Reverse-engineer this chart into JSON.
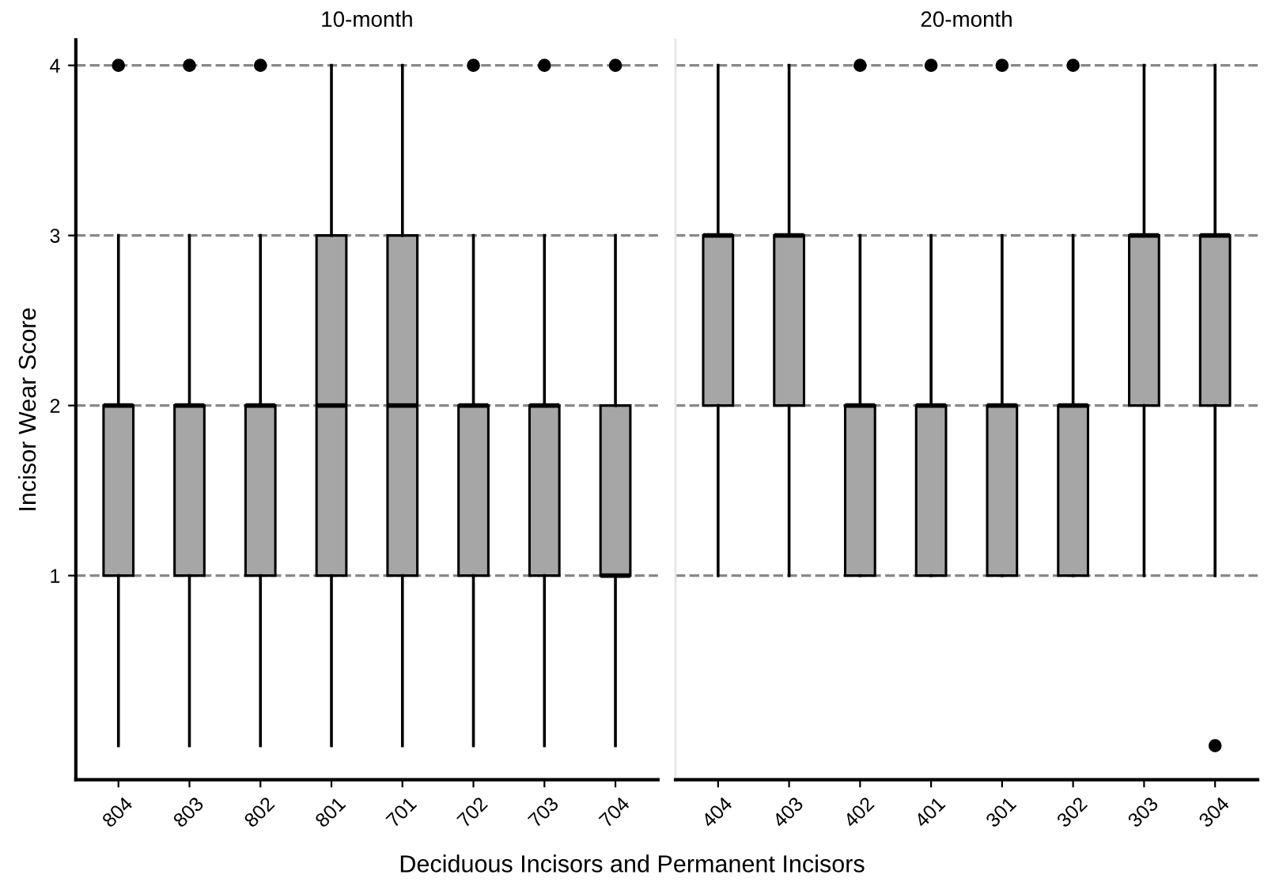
{
  "chart_data": [
    {
      "type": "box",
      "title": "10-month",
      "ylabel": "Incisor Wear Score",
      "xlabel": "Deciduous Incisors and Permanent Incisors",
      "categories": [
        "804",
        "803",
        "802",
        "801",
        "701",
        "702",
        "703",
        "704"
      ],
      "color": "#a6a6a6",
      "ylim": [
        -0.2,
        4.15
      ],
      "yticks": [
        1,
        2,
        3,
        4
      ],
      "grid": "y",
      "boxes": [
        {
          "low": 0,
          "q1": 1,
          "median": 2,
          "q3": 2,
          "high": 3,
          "outliers": [
            4
          ]
        },
        {
          "low": 0,
          "q1": 1,
          "median": 2,
          "q3": 2,
          "high": 3,
          "outliers": [
            4
          ]
        },
        {
          "low": 0,
          "q1": 1,
          "median": 2,
          "q3": 2,
          "high": 3,
          "outliers": [
            4
          ]
        },
        {
          "low": 0,
          "q1": 1,
          "median": 2,
          "q3": 3,
          "high": 4
        },
        {
          "low": 0,
          "q1": 1,
          "median": 2,
          "q3": 3,
          "high": 4
        },
        {
          "low": 0,
          "q1": 1,
          "median": 2,
          "q3": 2,
          "high": 3,
          "outliers": [
            4
          ]
        },
        {
          "low": 0,
          "q1": 1,
          "median": 2,
          "q3": 2,
          "high": 3,
          "outliers": [
            4
          ]
        },
        {
          "low": 0,
          "q1": 1,
          "median": 1,
          "q3": 2,
          "high": 3,
          "outliers": [
            4
          ]
        }
      ]
    },
    {
      "type": "box",
      "title": "20-month",
      "categories": [
        "404",
        "403",
        "402",
        "401",
        "301",
        "302",
        "303",
        "304"
      ],
      "color": "#a6a6a6",
      "ylim": [
        -0.2,
        4.15
      ],
      "yticks": [
        1,
        2,
        3,
        4
      ],
      "grid": "y",
      "tick_labels": "x",
      "boxes": [
        {
          "low": 1,
          "q1": 2,
          "median": 3,
          "q3": 3,
          "high": 4
        },
        {
          "low": 1,
          "q1": 2,
          "median": 3,
          "q3": 3,
          "high": 4
        },
        {
          "low": 1,
          "q1": 1,
          "median": 2,
          "q3": 2,
          "high": 3,
          "outliers": [
            4
          ]
        },
        {
          "low": 1,
          "q1": 1,
          "median": 2,
          "q3": 2,
          "high": 3,
          "outliers": [
            4
          ]
        },
        {
          "low": 1,
          "q1": 1,
          "median": 2,
          "q3": 2,
          "high": 3,
          "outliers": [
            4
          ]
        },
        {
          "low": 1,
          "q1": 1,
          "median": 2,
          "q3": 2,
          "high": 3,
          "outliers": [
            4
          ]
        },
        {
          "low": 1,
          "q1": 2,
          "median": 3,
          "q3": 3,
          "high": 4
        },
        {
          "low": 1,
          "q1": 2,
          "median": 3,
          "q3": 3,
          "high": 4,
          "outliers": [
            0
          ]
        }
      ]
    }
  ]
}
